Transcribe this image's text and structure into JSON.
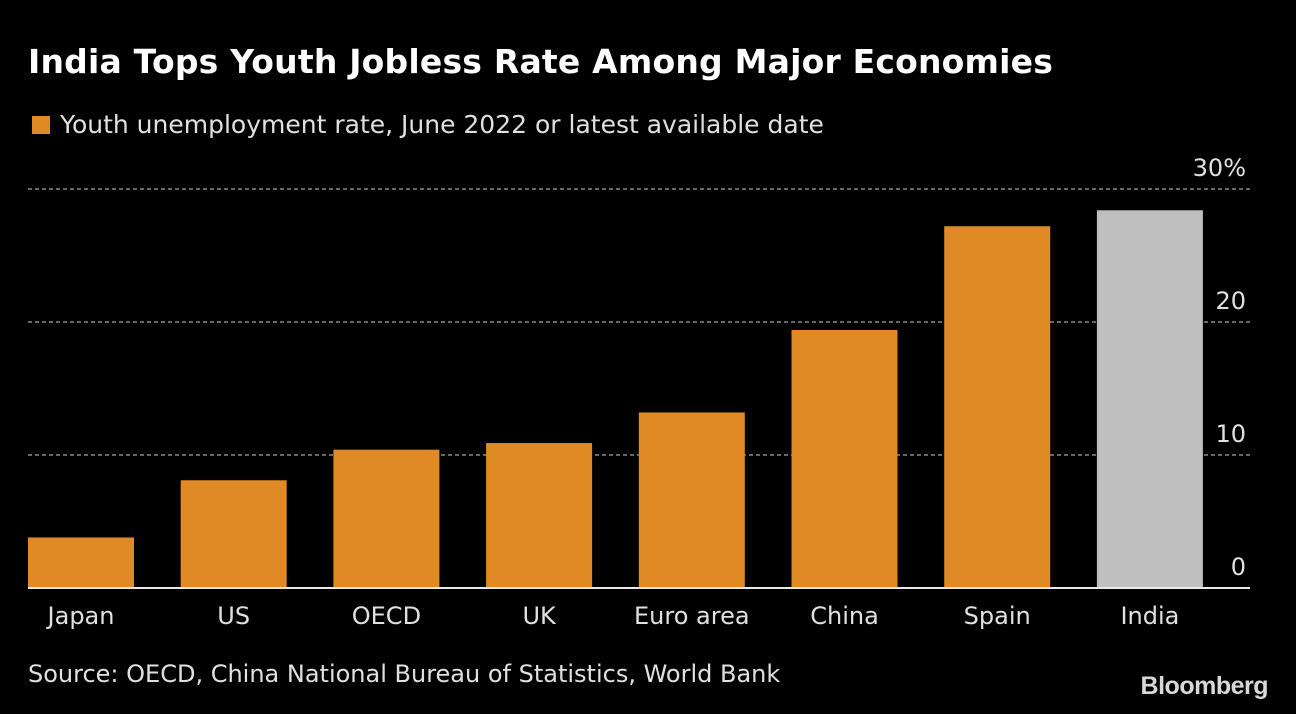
{
  "chart_data": {
    "type": "bar",
    "title": "India Tops Youth Jobless Rate Among Major Economies",
    "legend": [
      {
        "label": "Youth unemployment rate, June 2022 or latest available date",
        "color": "#df8a25"
      }
    ],
    "categories": [
      "Japan",
      "US",
      "OECD",
      "UK",
      "Euro area",
      "China",
      "Spain",
      "India"
    ],
    "values": [
      3.8,
      8.1,
      10.4,
      10.9,
      13.2,
      19.4,
      27.2,
      28.4
    ],
    "colors": [
      "#df8a25",
      "#df8a25",
      "#df8a25",
      "#df8a25",
      "#df8a25",
      "#df8a25",
      "#df8a25",
      "#bfbfbf"
    ],
    "ylim": [
      0,
      30
    ],
    "yticks": [
      "0",
      "10",
      "20",
      "30%"
    ],
    "ytick_values": [
      0,
      10,
      20,
      30
    ],
    "y_axis_position": "right",
    "grid": true,
    "legend_placement": "top-left",
    "xlabel": "",
    "ylabel": ""
  },
  "source": "Source: OECD, China National Bureau of Statistics, World Bank",
  "logo": "Bloomberg"
}
